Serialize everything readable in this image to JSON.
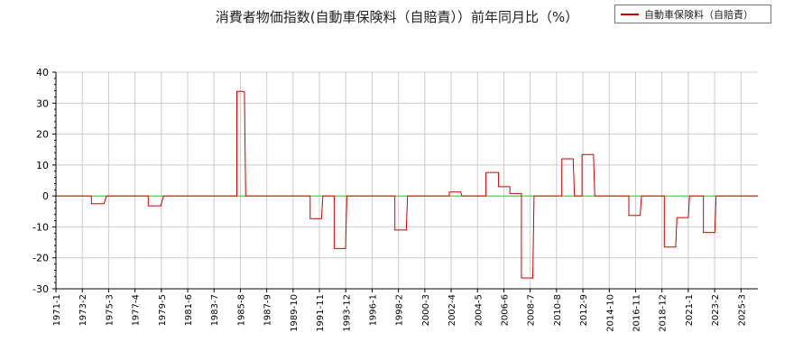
{
  "chart_data": {
    "type": "line",
    "title": "消費者物価指数(自動車保険料（自賠責））前年同月比（%）",
    "xlabel": "",
    "ylabel": "",
    "ylim": [
      -30,
      40
    ],
    "yticks": [
      40,
      30,
      20,
      10,
      0,
      -10,
      -20,
      -30
    ],
    "xlim": [
      1971.0,
      2026.5
    ],
    "grid": true,
    "legend_position": "top-right",
    "x_tick_labels": [
      "1971-1",
      "1973-2",
      "1975-3",
      "1977-4",
      "1979-5",
      "1981-6",
      "1983-7",
      "1985-8",
      "1987-9",
      "1989-10",
      "1991-11",
      "1993-12",
      "1996-1",
      "1998-2",
      "2000-3",
      "2002-4",
      "2004-5",
      "2006-6",
      "2008-7",
      "2010-8",
      "2012-9",
      "2014-10",
      "2016-11",
      "2018-12",
      "2021-1",
      "2023-2",
      "2025-3"
    ],
    "x_tick_positions": [
      1971.0,
      1973.083,
      1975.167,
      1977.25,
      1979.333,
      1981.417,
      1983.5,
      1985.583,
      1987.667,
      1989.75,
      1991.833,
      1993.917,
      1996.0,
      1998.083,
      2000.167,
      2002.25,
      2004.333,
      2006.417,
      2008.5,
      2010.583,
      2012.667,
      2014.75,
      2016.833,
      2018.917,
      2021.0,
      2023.083,
      2025.167
    ],
    "series": [
      {
        "name": "自動車保険料（自賠責）",
        "color": "#cc0000",
        "points": [
          [
            1971.0,
            0
          ],
          [
            1973.8,
            0
          ],
          [
            1973.8,
            -2.5
          ],
          [
            1974.8,
            -2.5
          ],
          [
            1975.0,
            0
          ],
          [
            1978.3,
            0
          ],
          [
            1978.3,
            -3.2
          ],
          [
            1979.3,
            -3.2
          ],
          [
            1979.5,
            0
          ],
          [
            1985.3,
            0
          ],
          [
            1985.3,
            33.8
          ],
          [
            1985.8,
            33.8
          ],
          [
            1985.9,
            33.5
          ],
          [
            1986.0,
            0
          ],
          [
            1991.1,
            0
          ],
          [
            1991.1,
            -7.3
          ],
          [
            1992.0,
            -7.3
          ],
          [
            1992.1,
            0
          ],
          [
            1993.0,
            0
          ],
          [
            1993.0,
            -17
          ],
          [
            1993.9,
            -17
          ],
          [
            1994.0,
            0
          ],
          [
            1997.8,
            0
          ],
          [
            1997.8,
            -11
          ],
          [
            1998.7,
            -11
          ],
          [
            1998.8,
            0
          ],
          [
            2002.1,
            0
          ],
          [
            2002.1,
            1.3
          ],
          [
            2003.0,
            1.3
          ],
          [
            2003.1,
            0
          ],
          [
            2005.0,
            0
          ],
          [
            2005.0,
            7.6
          ],
          [
            2006.0,
            7.6
          ],
          [
            2006.0,
            3.0
          ],
          [
            2006.9,
            3.0
          ],
          [
            2006.9,
            0.8
          ],
          [
            2007.8,
            0.8
          ],
          [
            2007.8,
            -26.5
          ],
          [
            2008.7,
            -26.5
          ],
          [
            2008.8,
            0
          ],
          [
            2011.0,
            0
          ],
          [
            2011.0,
            12
          ],
          [
            2011.9,
            12
          ],
          [
            2012.0,
            0
          ],
          [
            2012.6,
            0
          ],
          [
            2012.6,
            13.4
          ],
          [
            2013.5,
            13.4
          ],
          [
            2013.6,
            0
          ],
          [
            2016.3,
            0
          ],
          [
            2016.3,
            -6.3
          ],
          [
            2017.2,
            -6.3
          ],
          [
            2017.3,
            0
          ],
          [
            2019.1,
            0
          ],
          [
            2019.1,
            -16.5
          ],
          [
            2020.0,
            -16.5
          ],
          [
            2020.1,
            -7
          ],
          [
            2021.0,
            -7
          ],
          [
            2021.1,
            0
          ],
          [
            2022.2,
            0
          ],
          [
            2022.2,
            -11.8
          ],
          [
            2023.1,
            -11.8
          ],
          [
            2023.2,
            0
          ],
          [
            2026.5,
            0
          ]
        ]
      }
    ]
  }
}
